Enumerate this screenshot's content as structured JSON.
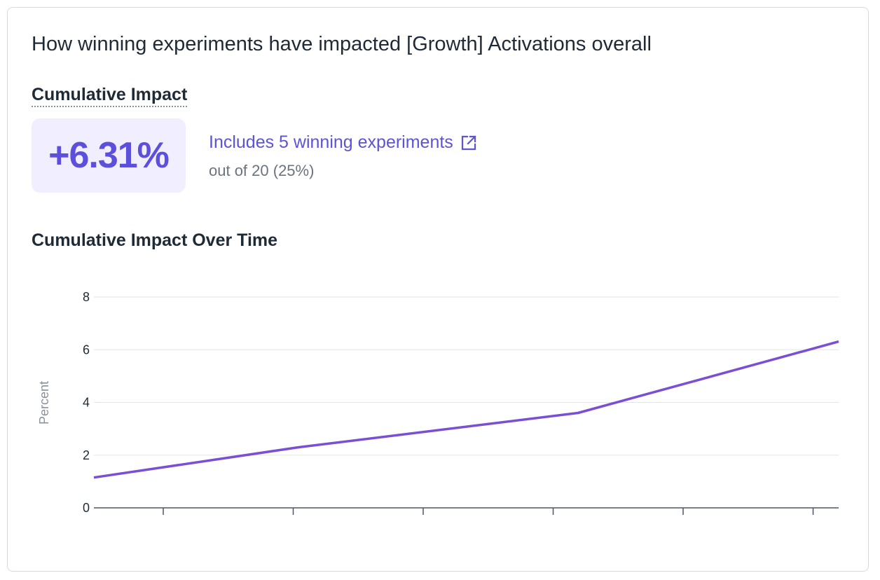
{
  "card": {
    "title": "How winning experiments have impacted [Growth] Activations overall",
    "impact_label": "Cumulative Impact",
    "impact_value": "+6.31%",
    "link_text": "Includes 5 winning experiments",
    "sub_text": "out of 20 (25%)",
    "chart_title": "Cumulative Impact Over Time",
    "icons": {
      "external_link": "external-link-icon"
    },
    "colors": {
      "accent": "#5b4fdc",
      "line": "#7a4fd6",
      "impact_bg": "#f1efff"
    }
  },
  "chart_data": {
    "type": "line",
    "title": "Cumulative Impact Over Time",
    "xlabel": "",
    "ylabel": "Percent",
    "ylim": [
      0,
      8
    ],
    "yticks": [
      0,
      2,
      4,
      6,
      8
    ],
    "grid": true,
    "x_tick_count": 6,
    "x_ticks_labeled": false,
    "series": [
      {
        "x": [
          0,
          0.275,
          0.65,
          1.0
        ],
        "values": [
          1.15,
          2.3,
          3.6,
          6.31
        ]
      }
    ]
  }
}
